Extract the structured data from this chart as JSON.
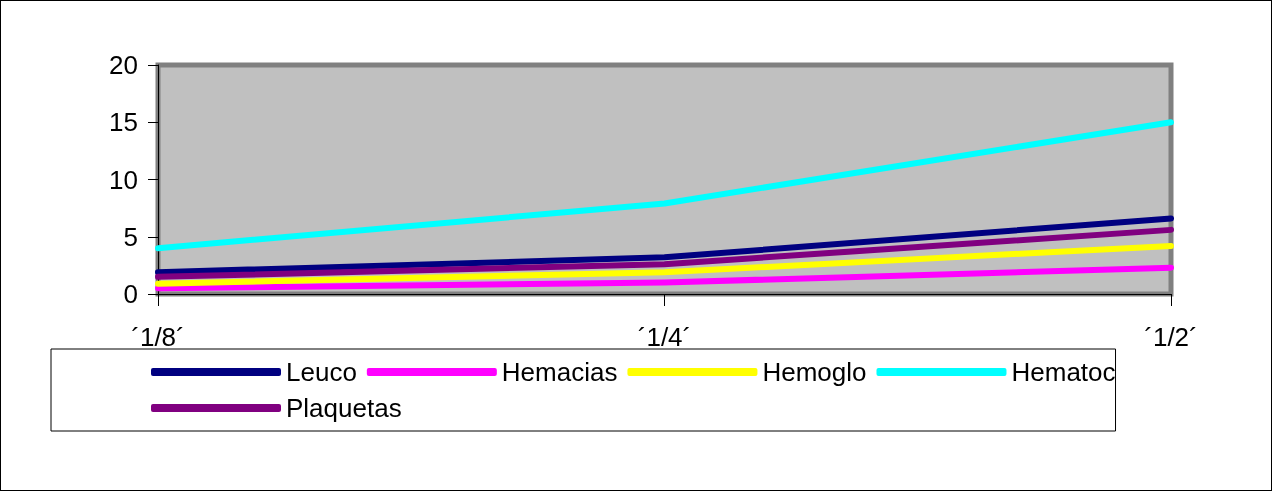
{
  "chart_data": {
    "type": "line",
    "categories": [
      "´1/8´",
      "´1/4´",
      "´1/2´"
    ],
    "series": [
      {
        "name": "Leuco",
        "color": "#000080",
        "values": [
          1.9,
          3.2,
          6.6
        ]
      },
      {
        "name": "Hemacias",
        "color": "#ff00ff",
        "values": [
          0.5,
          1.0,
          2.3
        ]
      },
      {
        "name": "Hemoglo",
        "color": "#ffff00",
        "values": [
          0.9,
          1.9,
          4.2
        ]
      },
      {
        "name": "Hematoc",
        "color": "#00ffff",
        "values": [
          4.0,
          7.9,
          15.0
        ]
      },
      {
        "name": "Plaquetas",
        "color": "#800080",
        "values": [
          1.5,
          2.6,
          5.6
        ]
      }
    ],
    "ylim": [
      0,
      20
    ],
    "yticks": [
      0,
      5,
      10,
      15,
      20
    ],
    "grid": false,
    "legend": "bottom",
    "line_style": "solid"
  }
}
